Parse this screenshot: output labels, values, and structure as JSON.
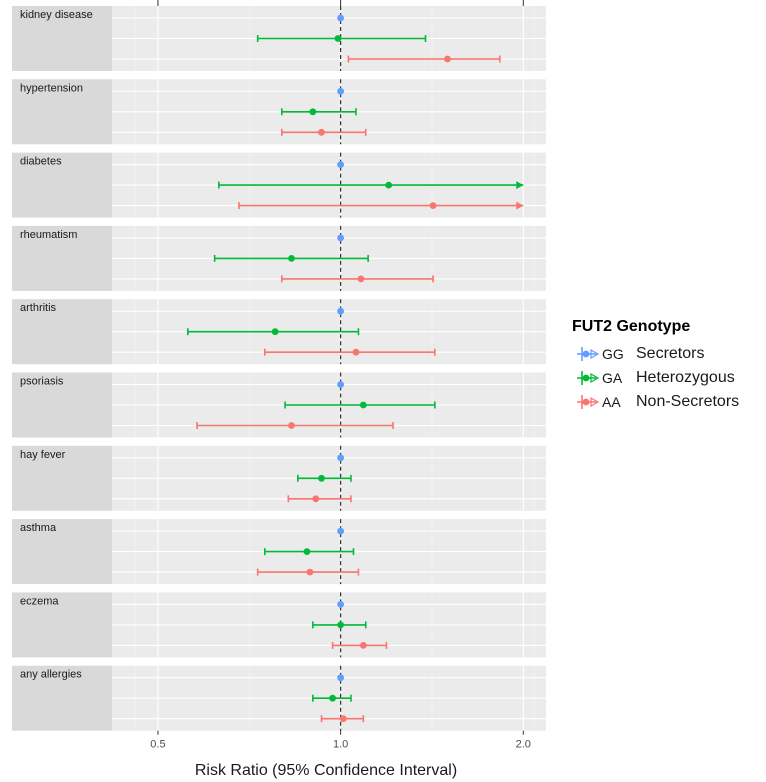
{
  "chart_data": {
    "type": "forest",
    "xlabel": "Risk Ratio (95% Confidence Interval)",
    "x_scale": "log",
    "xlim": [
      0.42,
      2.18
    ],
    "x_ticks": [
      {
        "value": 0.5,
        "label": "0.5"
      },
      {
        "value": 1.0,
        "label": "1.0"
      },
      {
        "value": 2.0,
        "label": "2.0"
      }
    ],
    "reference_line": 1.0,
    "legend": {
      "title": "FUT2 Genotype",
      "placement": "right",
      "entries": [
        {
          "key": "GG",
          "code": "GG",
          "label": "Secretors",
          "color": "#619cff"
        },
        {
          "key": "GA",
          "code": "GA",
          "label": "Heterozygous",
          "color": "#00ba38"
        },
        {
          "key": "AA",
          "code": "AA",
          "label": "Non-Secretors",
          "color": "#f8766d"
        }
      ]
    },
    "panels": [
      {
        "label": "kidney disease",
        "points": [
          {
            "genotype": "GG",
            "estimate": 1.0,
            "lower": 1.0,
            "upper": 1.0
          },
          {
            "genotype": "GA",
            "estimate": 0.99,
            "lower": 0.73,
            "upper": 1.38
          },
          {
            "genotype": "AA",
            "estimate": 1.5,
            "lower": 1.03,
            "upper": 1.83
          }
        ]
      },
      {
        "label": "hypertension",
        "points": [
          {
            "genotype": "GG",
            "estimate": 1.0,
            "lower": 1.0,
            "upper": 1.0
          },
          {
            "genotype": "GA",
            "estimate": 0.9,
            "lower": 0.8,
            "upper": 1.06
          },
          {
            "genotype": "AA",
            "estimate": 0.93,
            "lower": 0.8,
            "upper": 1.1
          }
        ]
      },
      {
        "label": "diabetes",
        "points": [
          {
            "genotype": "GG",
            "estimate": 1.0,
            "lower": 1.0,
            "upper": 1.0
          },
          {
            "genotype": "GA",
            "estimate": 1.2,
            "lower": 0.63,
            "upper": 2.0
          },
          {
            "genotype": "AA",
            "estimate": 1.42,
            "lower": 0.68,
            "upper": 2.0
          }
        ]
      },
      {
        "label": "rheumatism",
        "points": [
          {
            "genotype": "GG",
            "estimate": 1.0,
            "lower": 1.0,
            "upper": 1.0
          },
          {
            "genotype": "GA",
            "estimate": 0.83,
            "lower": 0.62,
            "upper": 1.11
          },
          {
            "genotype": "AA",
            "estimate": 1.08,
            "lower": 0.8,
            "upper": 1.42
          }
        ]
      },
      {
        "label": "arthritis",
        "points": [
          {
            "genotype": "GG",
            "estimate": 1.0,
            "lower": 1.0,
            "upper": 1.0
          },
          {
            "genotype": "GA",
            "estimate": 0.78,
            "lower": 0.56,
            "upper": 1.07
          },
          {
            "genotype": "AA",
            "estimate": 1.06,
            "lower": 0.75,
            "upper": 1.43
          }
        ]
      },
      {
        "label": "psoriasis",
        "points": [
          {
            "genotype": "GG",
            "estimate": 1.0,
            "lower": 1.0,
            "upper": 1.0
          },
          {
            "genotype": "GA",
            "estimate": 1.09,
            "lower": 0.81,
            "upper": 1.43
          },
          {
            "genotype": "AA",
            "estimate": 0.83,
            "lower": 0.58,
            "upper": 1.22
          }
        ]
      },
      {
        "label": "hay fever",
        "points": [
          {
            "genotype": "GG",
            "estimate": 1.0,
            "lower": 1.0,
            "upper": 1.0
          },
          {
            "genotype": "GA",
            "estimate": 0.93,
            "lower": 0.85,
            "upper": 1.04
          },
          {
            "genotype": "AA",
            "estimate": 0.91,
            "lower": 0.82,
            "upper": 1.04
          }
        ]
      },
      {
        "label": "asthma",
        "points": [
          {
            "genotype": "GG",
            "estimate": 1.0,
            "lower": 1.0,
            "upper": 1.0
          },
          {
            "genotype": "GA",
            "estimate": 0.88,
            "lower": 0.75,
            "upper": 1.05
          },
          {
            "genotype": "AA",
            "estimate": 0.89,
            "lower": 0.73,
            "upper": 1.07
          }
        ]
      },
      {
        "label": "eczema",
        "points": [
          {
            "genotype": "GG",
            "estimate": 1.0,
            "lower": 1.0,
            "upper": 1.0
          },
          {
            "genotype": "GA",
            "estimate": 1.0,
            "lower": 0.9,
            "upper": 1.1
          },
          {
            "genotype": "AA",
            "estimate": 1.09,
            "lower": 0.97,
            "upper": 1.19
          }
        ]
      },
      {
        "label": "any allergies",
        "points": [
          {
            "genotype": "GG",
            "estimate": 1.0,
            "lower": 1.0,
            "upper": 1.0
          },
          {
            "genotype": "GA",
            "estimate": 0.97,
            "lower": 0.9,
            "upper": 1.04
          },
          {
            "genotype": "AA",
            "estimate": 1.01,
            "lower": 0.93,
            "upper": 1.09
          }
        ]
      }
    ]
  }
}
